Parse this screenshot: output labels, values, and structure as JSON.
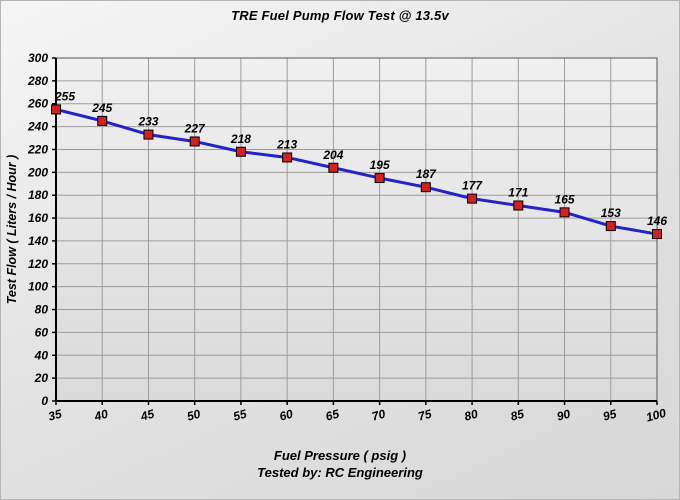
{
  "chart_data": {
    "type": "line",
    "title": "TRE Fuel Pump Flow Test @ 13.5v",
    "xlabel": "Fuel Pressure ( psig )",
    "ylabel": "Test Flow ( Liters / Hour )",
    "footer": "Tested by: RC Engineering",
    "x": [
      35,
      40,
      45,
      50,
      55,
      60,
      65,
      70,
      75,
      80,
      85,
      90,
      95,
      100
    ],
    "values": [
      255,
      245,
      233,
      227,
      218,
      213,
      204,
      195,
      187,
      177,
      171,
      165,
      153,
      146
    ],
    "x_ticks": [
      35,
      40,
      45,
      50,
      55,
      60,
      65,
      70,
      75,
      80,
      85,
      90,
      95,
      100
    ],
    "y_ticks": [
      0,
      20,
      40,
      60,
      80,
      100,
      120,
      140,
      160,
      180,
      200,
      220,
      240,
      260,
      280,
      300
    ],
    "xlim": [
      35,
      100
    ],
    "ylim": [
      0,
      300
    ],
    "grid": true,
    "legend": false,
    "line_color": "#2323c8",
    "marker_fill": "#cf2222",
    "marker_edge": "#000000",
    "grid_color": "#9c9c9c"
  }
}
